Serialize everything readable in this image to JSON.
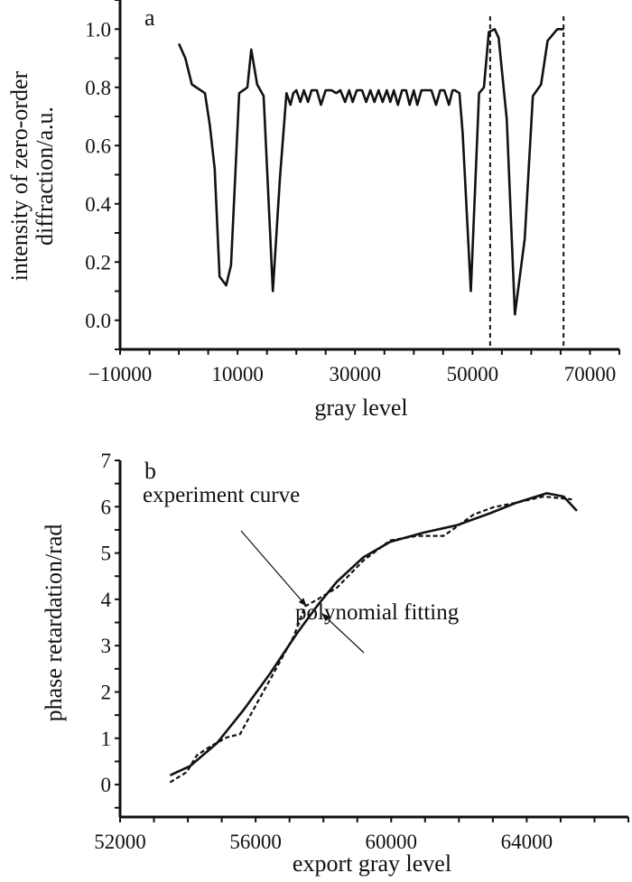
{
  "chart_data": [
    {
      "type": "line",
      "panel_label": "a",
      "xlabel": "gray level",
      "ylabel_lines": [
        "intensity of zero-order",
        "diffraction/a.u."
      ],
      "xlim": [
        -10000,
        75000
      ],
      "ylim": [
        -0.1,
        1.1
      ],
      "xticks": [
        -10000,
        10000,
        30000,
        50000,
        70000
      ],
      "xtick_labels": [
        "−10000",
        "10000",
        "30000",
        "50000",
        "70000"
      ],
      "yticks": [
        0.0,
        0.2,
        0.4,
        0.6,
        0.8,
        1.0
      ],
      "ytick_labels": [
        "0.0",
        "0.2",
        "0.4",
        "0.6",
        "0.8",
        "1.0"
      ],
      "grid": false,
      "vlines_dashed": [
        53000,
        65500
      ],
      "series": [
        {
          "name": "zero-order intensity",
          "style": "solid",
          "x": [
            0,
            1111,
            2222,
            4444,
            5278,
            6111,
            6944,
            8056,
            8889,
            10278,
            11667,
            12333,
            13333,
            14444,
            16000,
            17222,
            18333,
            19000,
            19500,
            20000,
            20700,
            21300,
            22000,
            22600,
            23500,
            24200,
            25000,
            26000,
            26800,
            27500,
            28300,
            29000,
            29600,
            30300,
            31200,
            31900,
            32600,
            33300,
            34000,
            34700,
            35400,
            36000,
            36600,
            37300,
            38000,
            38700,
            39300,
            40000,
            40600,
            41300,
            42000,
            43000,
            43800,
            44500,
            45200,
            46000,
            46600,
            47000,
            47778,
            48333,
            49722,
            51111,
            51944,
            52778,
            53778,
            54444,
            55833,
            57222,
            58889,
            60278,
            61667,
            62778,
            64444,
            65556
          ],
          "y": [
            0.95,
            0.9,
            0.81,
            0.78,
            0.67,
            0.52,
            0.15,
            0.12,
            0.19,
            0.78,
            0.8,
            0.93,
            0.81,
            0.77,
            0.1,
            0.49,
            0.78,
            0.74,
            0.78,
            0.79,
            0.75,
            0.79,
            0.75,
            0.79,
            0.79,
            0.74,
            0.79,
            0.79,
            0.78,
            0.79,
            0.75,
            0.79,
            0.75,
            0.79,
            0.79,
            0.75,
            0.79,
            0.75,
            0.79,
            0.75,
            0.79,
            0.75,
            0.79,
            0.74,
            0.79,
            0.79,
            0.74,
            0.79,
            0.74,
            0.79,
            0.79,
            0.79,
            0.74,
            0.79,
            0.79,
            0.74,
            0.79,
            0.79,
            0.78,
            0.64,
            0.1,
            0.78,
            0.8,
            0.99,
            1.0,
            0.97,
            0.69,
            0.02,
            0.28,
            0.77,
            0.81,
            0.96,
            1.0,
            1.0
          ]
        }
      ]
    },
    {
      "type": "line",
      "panel_label": "b",
      "xlabel": "export gray level",
      "ylabel": "phase retardation/rad",
      "xlim": [
        52000,
        67000
      ],
      "ylim": [
        -0.7,
        7
      ],
      "xticks": [
        52000,
        56000,
        60000,
        64000
      ],
      "xtick_labels": [
        "52000",
        "56000",
        "60000",
        "64000"
      ],
      "yticks": [
        0,
        1,
        2,
        3,
        4,
        5,
        6,
        7
      ],
      "ytick_labels": [
        "0",
        "1",
        "2",
        "3",
        "4",
        "5",
        "6",
        "7"
      ],
      "grid": false,
      "annotations": [
        "experiment curve",
        "polynomial fitting"
      ],
      "series": [
        {
          "name": "experiment curve",
          "style": "dashed",
          "x": [
            53476,
            53968,
            54263,
            54657,
            55149,
            55542,
            56034,
            56527,
            57117,
            57462,
            57806,
            58396,
            59183,
            59970,
            60757,
            61545,
            61938,
            62430,
            63021,
            63710,
            64497,
            65333
          ],
          "y": [
            0.05,
            0.27,
            0.63,
            0.82,
            1.02,
            1.09,
            1.75,
            2.4,
            3.19,
            3.85,
            3.99,
            4.25,
            4.84,
            5.27,
            5.37,
            5.37,
            5.57,
            5.83,
            5.99,
            6.09,
            6.22,
            6.16
          ]
        },
        {
          "name": "polynomial fitting",
          "style": "solid",
          "x": [
            53476,
            54066,
            54854,
            55641,
            56428,
            57215,
            57806,
            58396,
            59183,
            59970,
            60954,
            61938,
            62922,
            63710,
            64595,
            65088,
            65481
          ],
          "y": [
            0.2,
            0.4,
            0.89,
            1.61,
            2.4,
            3.26,
            3.85,
            4.38,
            4.91,
            5.24,
            5.44,
            5.6,
            5.86,
            6.09,
            6.29,
            6.22,
            5.91
          ]
        }
      ]
    }
  ]
}
